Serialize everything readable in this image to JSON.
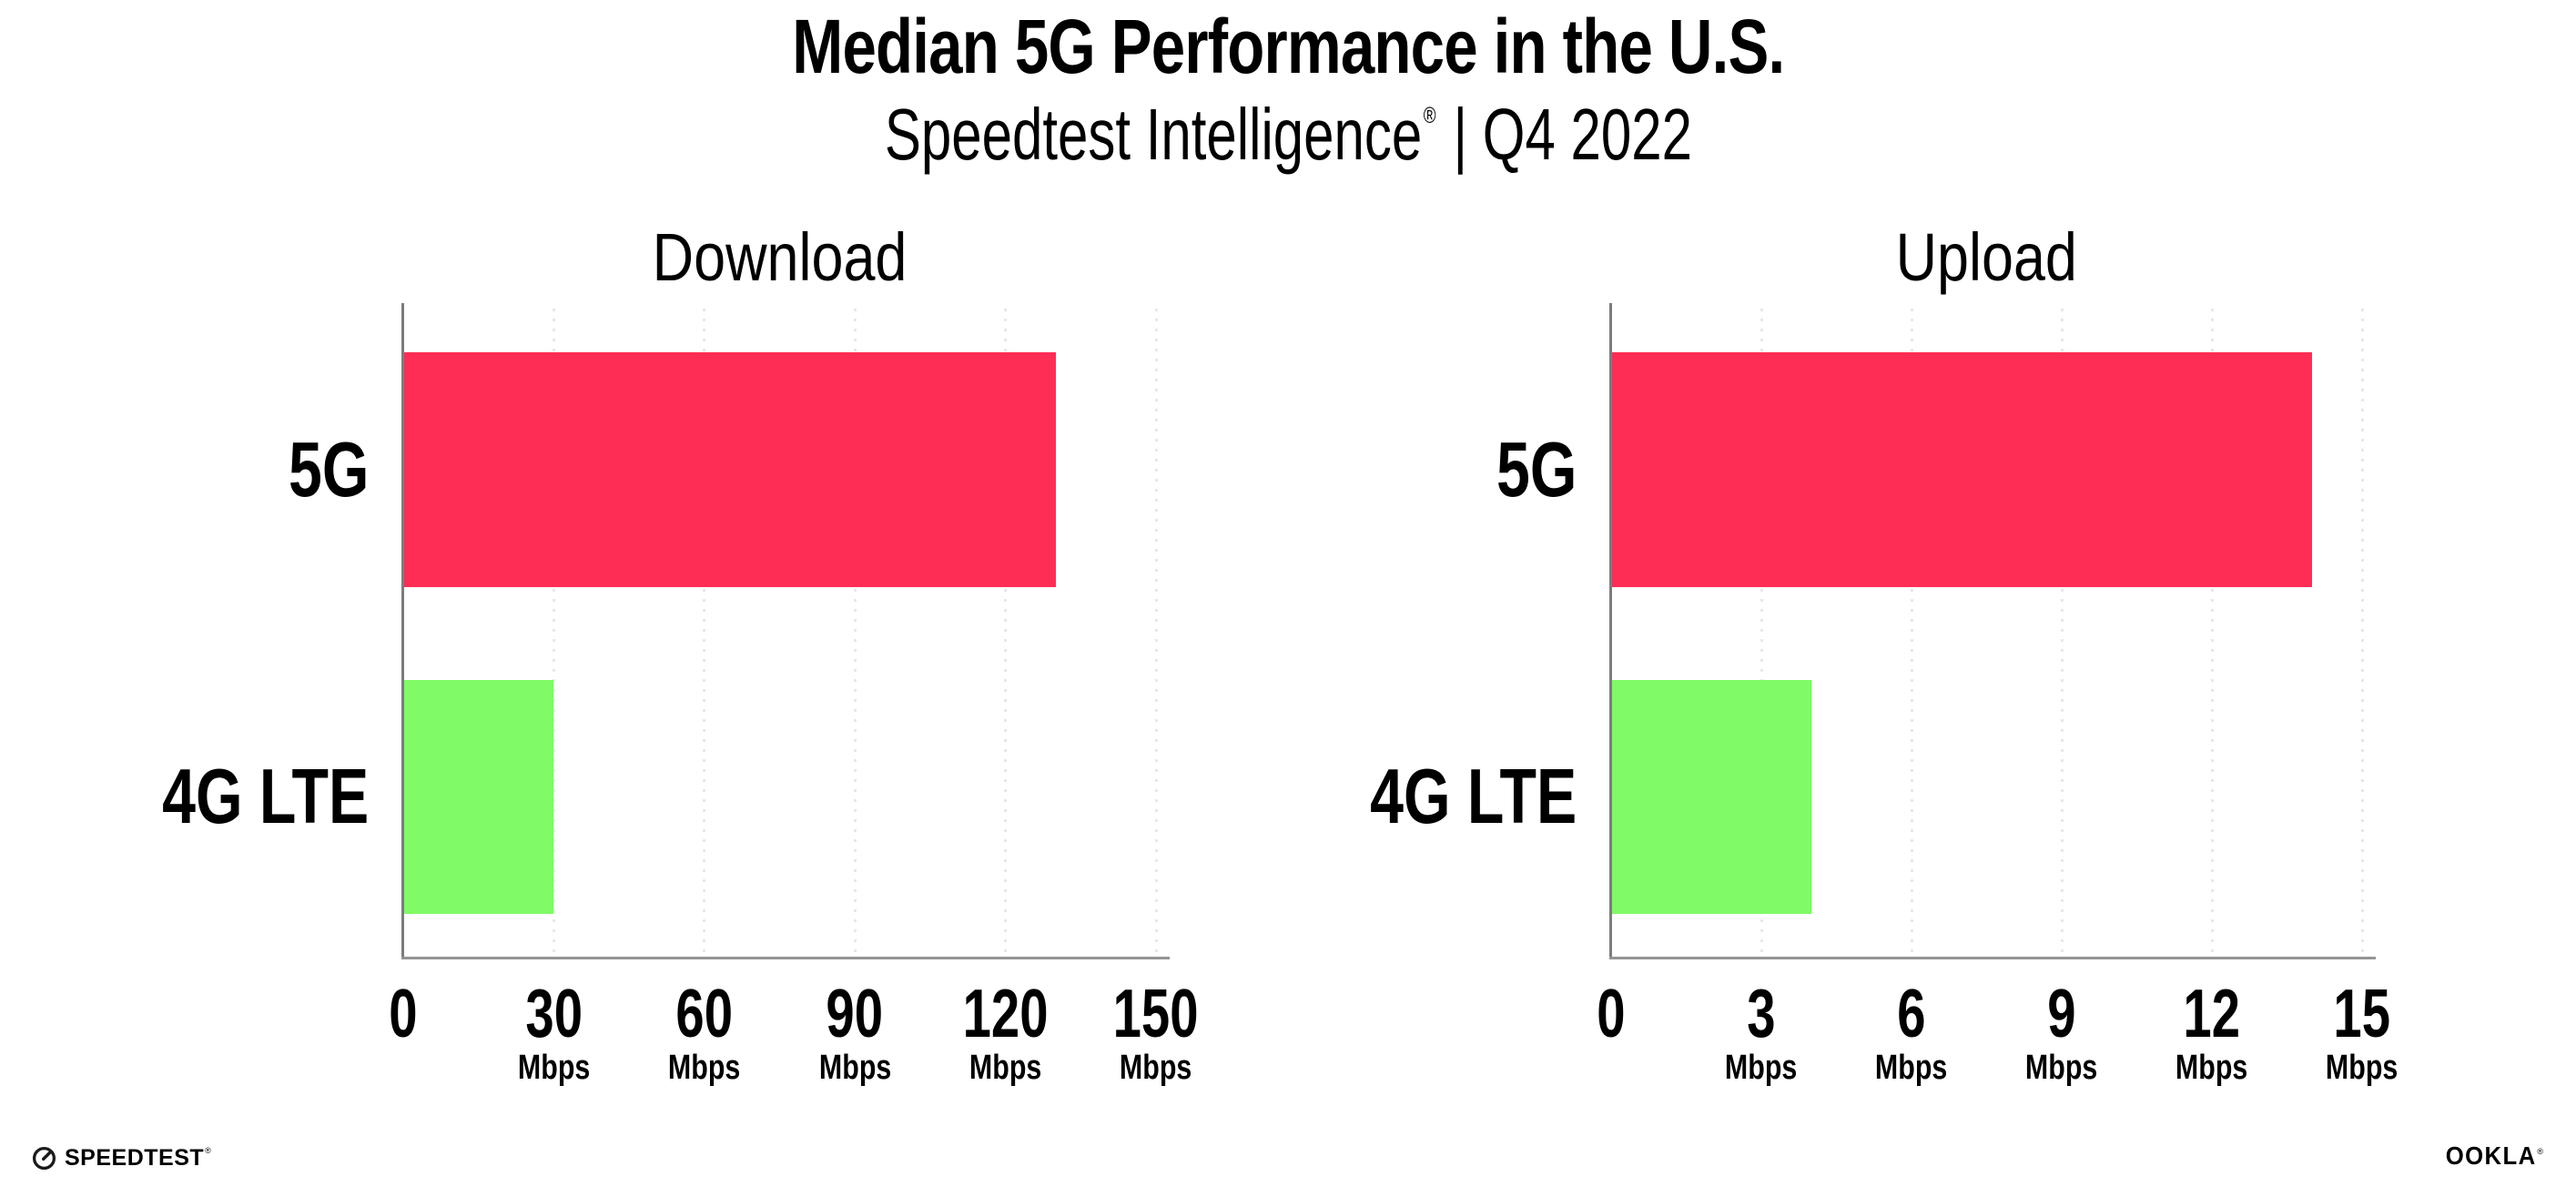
{
  "header": {
    "title": "Median 5G Performance in the U.S.",
    "subtitle_brand": "Speedtest Intelligence",
    "subtitle_reg": "®",
    "subtitle_suffix": " | Q4 2022"
  },
  "chart_data": [
    {
      "type": "bar",
      "orientation": "horizontal",
      "title": "Download",
      "categories": [
        "5G",
        "4G LTE"
      ],
      "values": [
        130,
        30
      ],
      "unit": "Mbps",
      "xlim": [
        0,
        150
      ],
      "xticks": [
        0,
        30,
        60,
        90,
        120,
        150
      ],
      "tick_unit_label": "Mbps",
      "bar_colors": [
        "#FE2D55",
        "#80FA66"
      ],
      "grid": "dotted-vertical-gridlines",
      "legend": "none",
      "xlabel": "",
      "ylabel": ""
    },
    {
      "type": "bar",
      "orientation": "horizontal",
      "title": "Upload",
      "categories": [
        "5G",
        "4G LTE"
      ],
      "values": [
        14,
        4
      ],
      "unit": "Mbps",
      "xlim": [
        0,
        15
      ],
      "xticks": [
        0,
        3,
        6,
        9,
        12,
        15
      ],
      "tick_unit_label": "Mbps",
      "bar_colors": [
        "#FE2D55",
        "#80FA66"
      ],
      "grid": "dotted-vertical-gridlines",
      "legend": "none",
      "xlabel": "",
      "ylabel": ""
    }
  ],
  "colors": {
    "bar_5g": "#FE2D55",
    "bar_4g_lte": "#80FA66",
    "gridline_dots": "#E4E4EE",
    "axis_line": "#8A8A8A",
    "text": "#000000",
    "background": "#FFFFFF"
  },
  "footer": {
    "speedtest_logo_text": "SPEEDTEST",
    "speedtest_reg": "®",
    "ookla_logo_text": "OOKLA",
    "ookla_reg": "®"
  }
}
